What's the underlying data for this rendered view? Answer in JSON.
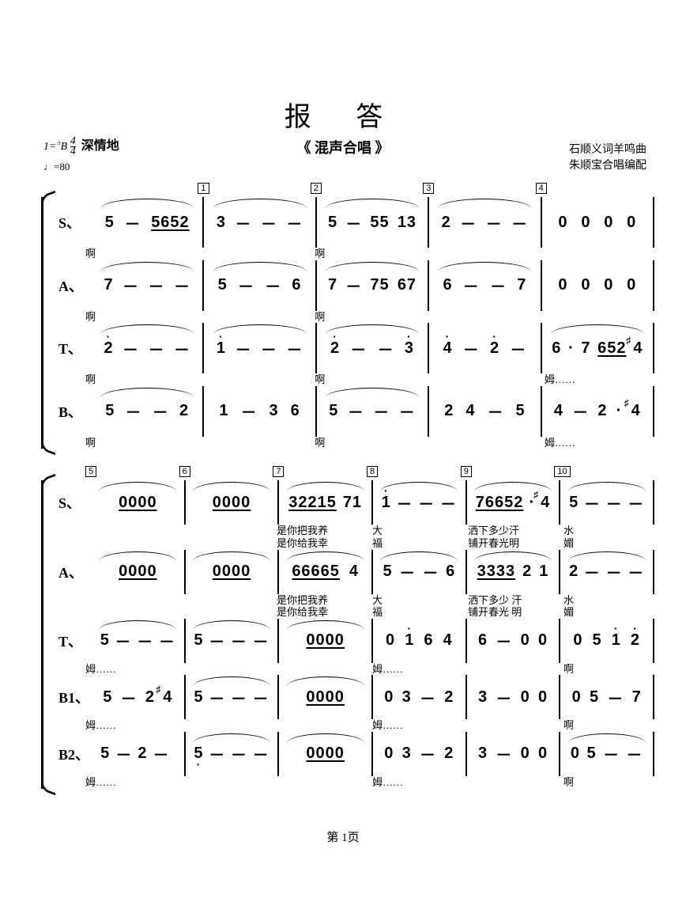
{
  "title": "报 答",
  "subtitle": "《 混声合唱 》",
  "key_text": "1=♭B 4/4",
  "expression": "深情地",
  "tempo": "♩=80",
  "credits": [
    "石顺义词羊鸣曲",
    "朱顺宝合唱编配"
  ],
  "footer": "第 1页",
  "system1": {
    "measure_numbers": [
      "",
      "1",
      "2",
      "3",
      "4"
    ],
    "voices": {
      "S": {
        "label": "S、",
        "measures": [
          "5 － 5652",
          "3 － － －",
          "5 － 55 13",
          "2 － － －",
          "0 0 0 0"
        ],
        "lyrics": [
          "啊",
          "",
          "啊",
          "",
          ""
        ]
      },
      "A": {
        "label": "A、",
        "measures": [
          "7 － － －",
          "5 － － 6",
          "7 － 75 67",
          "6 － － 7",
          "0 0 0 0"
        ],
        "lyrics": [
          "啊",
          "",
          "啊",
          "",
          ""
        ]
      },
      "T": {
        "label": "T、",
        "measures": [
          "2̇ － － －",
          "1̇ － － －",
          "2̇ － － 3̇",
          "4̇ － 2̇ －",
          "6 · 7 652 ♯4"
        ],
        "lyrics": [
          "啊",
          "",
          "啊",
          "",
          "姆……"
        ]
      },
      "B": {
        "label": "B、",
        "measures": [
          "5 － － 2",
          "1 － 3 6",
          "5 － － －",
          "2 4 － 5",
          "4 － 2 · ♯4"
        ],
        "lyrics": [
          "啊",
          "",
          "啊",
          "",
          "姆……"
        ]
      }
    }
  },
  "system2": {
    "measure_numbers": [
      "5",
      "6",
      "7",
      "8",
      "9",
      "10"
    ],
    "voices": {
      "S": {
        "label": "S、",
        "measures": [
          "0000",
          "0000",
          "32215 71",
          "1̇ － － －",
          "76652 · ♯4",
          "5 － － －"
        ],
        "lyrics": [
          "",
          "",
          "是你把我养\n是你给我幸",
          "大\n福",
          "洒下多少汗\n铺开春光明",
          "水\n媚"
        ]
      },
      "A": {
        "label": "A、",
        "measures": [
          "0000",
          "0000",
          "66665 4",
          "5 － － 6",
          "3333 2 1",
          "2 － － －"
        ],
        "lyrics": [
          "",
          "",
          "是你把我养\n是你给我幸",
          "大\n福",
          "洒下多少 汗\n铺开春光 明",
          "水\n媚"
        ]
      },
      "T": {
        "label": "T、",
        "measures": [
          "5 － － －",
          "5 － － －",
          "0000",
          "0 1̇ 6 4",
          "6 － 0 0",
          "0 5 1̇ 2̇"
        ],
        "lyrics": [
          "姆……",
          "",
          "",
          "姆……",
          "",
          "啊"
        ]
      },
      "B1": {
        "label": "B1、",
        "measures": [
          "5 － 2 ♯4",
          "5 － － －",
          "0000",
          "0 3 － 2",
          "3 － 0 0",
          "0 5 － 7"
        ],
        "lyrics": [
          "姆……",
          "",
          "",
          "姆……",
          "",
          "啊"
        ]
      },
      "B2": {
        "label": "B2、",
        "measures": [
          "5 － 2 － ",
          "5̣ － － －",
          "0000",
          "0 3 － 2",
          "3 － 0 0",
          "0 5 － －"
        ],
        "lyrics": [
          "姆……",
          "",
          "",
          "姆……",
          "",
          "啊"
        ]
      }
    }
  }
}
